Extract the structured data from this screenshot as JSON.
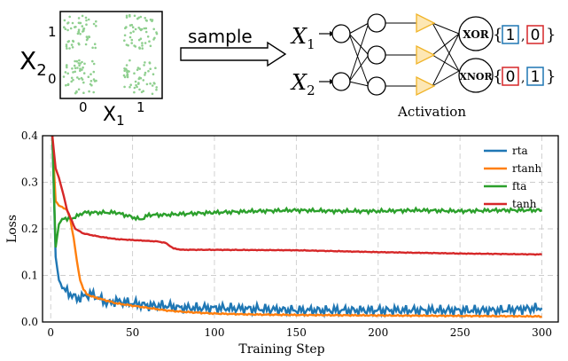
{
  "diagram": {
    "scatter": {
      "x_label": "X",
      "x_sub": "1",
      "y_label": "X",
      "y_sub": "2",
      "x_ticks": [
        "0",
        "1"
      ],
      "y_ticks": [
        "0",
        "1"
      ],
      "point_color": "#8fcf8f"
    },
    "arrow_label": "sample",
    "inputs": [
      {
        "label": "X",
        "sub": "1"
      },
      {
        "label": "X",
        "sub": "2"
      }
    ],
    "activation_label": "Activation",
    "activation_color": "#f0b429",
    "outputs": [
      {
        "gate": "XOR",
        "values": [
          "1",
          "0"
        ],
        "box_colors": [
          "#1f77b4",
          "#d62728"
        ]
      },
      {
        "gate": "XNOR",
        "values": [
          "0",
          "1"
        ],
        "box_colors": [
          "#d62728",
          "#1f77b4"
        ]
      }
    ]
  },
  "chart_data": {
    "type": "line",
    "title": "",
    "xlabel": "Training Step",
    "ylabel": "Loss",
    "xlim": [
      -5,
      310
    ],
    "ylim": [
      0,
      0.4
    ],
    "x_ticks": [
      0,
      50,
      100,
      150,
      200,
      250,
      300
    ],
    "x_tick_labels": [
      "0",
      "50",
      "100",
      "150",
      "200",
      "250",
      "300"
    ],
    "y_ticks": [
      0.0,
      0.1,
      0.2,
      0.3,
      0.4
    ],
    "y_tick_labels": [
      "0.0",
      "0.1",
      "0.2",
      "0.3",
      "0.4"
    ],
    "grid": "dashed",
    "legend_position": "top-right",
    "series": [
      {
        "name": "rta",
        "color": "#1f77b4",
        "x": [
          1,
          3,
          5,
          8,
          12,
          16,
          20,
          25,
          30,
          35,
          40,
          50,
          60,
          70,
          80,
          90,
          100,
          125,
          150,
          175,
          200,
          225,
          250,
          275,
          300
        ],
        "y": [
          0.4,
          0.14,
          0.09,
          0.07,
          0.06,
          0.05,
          0.055,
          0.06,
          0.05,
          0.04,
          0.045,
          0.04,
          0.035,
          0.035,
          0.03,
          0.03,
          0.03,
          0.028,
          0.025,
          0.025,
          0.025,
          0.025,
          0.025,
          0.025,
          0.03
        ]
      },
      {
        "name": "rtanh",
        "color": "#ff7f0e",
        "x": [
          1,
          3,
          5,
          8,
          10,
          12,
          14,
          16,
          18,
          20,
          22,
          25,
          30,
          35,
          40,
          50,
          60,
          70,
          80,
          100,
          125,
          150,
          200,
          250,
          300
        ],
        "y": [
          0.4,
          0.26,
          0.25,
          0.245,
          0.24,
          0.22,
          0.18,
          0.13,
          0.09,
          0.07,
          0.06,
          0.055,
          0.05,
          0.045,
          0.04,
          0.035,
          0.03,
          0.025,
          0.022,
          0.018,
          0.016,
          0.015,
          0.014,
          0.013,
          0.012
        ]
      },
      {
        "name": "fta",
        "color": "#2ca02c",
        "x": [
          1,
          3,
          5,
          8,
          10,
          15,
          20,
          30,
          40,
          50,
          55,
          60,
          70,
          80,
          100,
          125,
          150,
          175,
          200,
          225,
          250,
          275,
          300
        ],
        "y": [
          0.4,
          0.16,
          0.21,
          0.225,
          0.22,
          0.225,
          0.235,
          0.235,
          0.235,
          0.225,
          0.22,
          0.23,
          0.23,
          0.232,
          0.235,
          0.238,
          0.24,
          0.238,
          0.238,
          0.24,
          0.238,
          0.24,
          0.24
        ]
      },
      {
        "name": "tanh",
        "color": "#d62728",
        "x": [
          1,
          3,
          5,
          8,
          10,
          15,
          20,
          30,
          40,
          50,
          60,
          65,
          70,
          75,
          80,
          100,
          150,
          200,
          250,
          300
        ],
        "y": [
          0.4,
          0.33,
          0.31,
          0.27,
          0.24,
          0.2,
          0.19,
          0.183,
          0.178,
          0.176,
          0.174,
          0.173,
          0.17,
          0.158,
          0.155,
          0.155,
          0.154,
          0.15,
          0.147,
          0.145
        ]
      }
    ]
  }
}
